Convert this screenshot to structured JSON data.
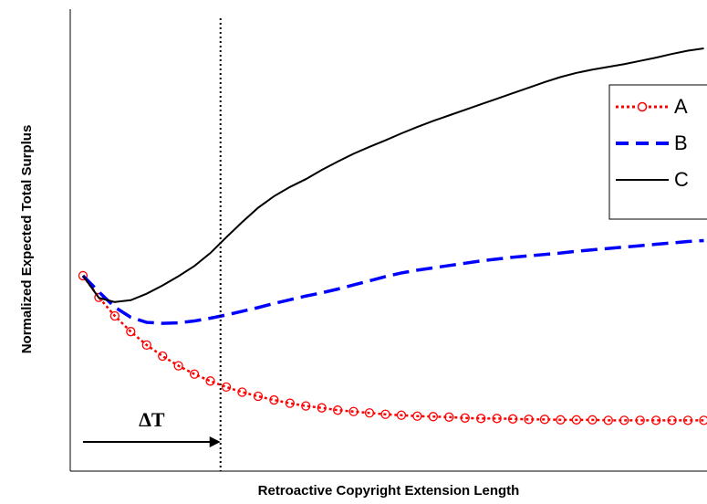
{
  "chart_data": {
    "type": "line",
    "x_label": "Retroactive Copyright Extension Length",
    "y_label": "Normalized Expected Total Surplus",
    "xlim": [
      0,
      100
    ],
    "ylim": [
      0,
      100
    ],
    "x": [
      2,
      4.5,
      7,
      9.5,
      12,
      14.5,
      17,
      19.5,
      22,
      24.5,
      27,
      29.5,
      32,
      34.5,
      37,
      39.5,
      42,
      44.5,
      47,
      49.5,
      52,
      54.5,
      57,
      59.5,
      62,
      64.5,
      67,
      69.5,
      72,
      74.5,
      77,
      79.5,
      82,
      84.5,
      87,
      89.5,
      92,
      94.5,
      97,
      99.5
    ],
    "series": [
      {
        "name": "A",
        "color": "#ff0000",
        "linestyle": "dotted",
        "marker": "circle",
        "values": [
          42.3,
          37.6,
          33.6,
          30.2,
          27.3,
          24.9,
          22.8,
          21.0,
          19.5,
          18.2,
          17.1,
          16.2,
          15.4,
          14.7,
          14.1,
          13.7,
          13.2,
          12.9,
          12.6,
          12.3,
          12.1,
          11.9,
          11.8,
          11.7,
          11.5,
          11.4,
          11.4,
          11.3,
          11.2,
          11.2,
          11.1,
          11.1,
          11.1,
          11.0,
          11.0,
          11.0,
          11.0,
          11.0,
          11.0,
          11.0
        ]
      },
      {
        "name": "B",
        "color": "#0000ff",
        "linestyle": "dashed",
        "values": [
          42.3,
          38.8,
          35.5,
          33.3,
          32.2,
          32.0,
          32.1,
          32.5,
          33.1,
          33.8,
          34.6,
          35.4,
          36.3,
          37.1,
          37.9,
          38.6,
          39.4,
          40.3,
          41.2,
          42.1,
          42.9,
          43.5,
          44.0,
          44.5,
          45.0,
          45.5,
          45.9,
          46.3,
          46.6,
          46.9,
          47.2,
          47.6,
          47.9,
          48.2,
          48.5,
          48.8,
          49.1,
          49.4,
          49.7,
          49.9
        ]
      },
      {
        "name": "C",
        "color": "#000000",
        "linestyle": "solid",
        "values": [
          42.3,
          37.5,
          36.6,
          37.0,
          38.4,
          40.2,
          42.2,
          44.4,
          47.2,
          50.6,
          53.9,
          57.0,
          59.5,
          61.5,
          63.2,
          65.2,
          67.0,
          68.7,
          70.2,
          71.6,
          73.1,
          74.5,
          75.8,
          77.0,
          78.2,
          79.4,
          80.6,
          81.8,
          83.0,
          84.2,
          85.3,
          86.2,
          86.9,
          87.5,
          88.1,
          88.8,
          89.5,
          90.3,
          91.0,
          91.5
        ]
      }
    ],
    "annotation": {
      "text": "ΔT",
      "x_start": 2,
      "x_end": 23.6
    },
    "legend": "upper right",
    "grid": false
  }
}
